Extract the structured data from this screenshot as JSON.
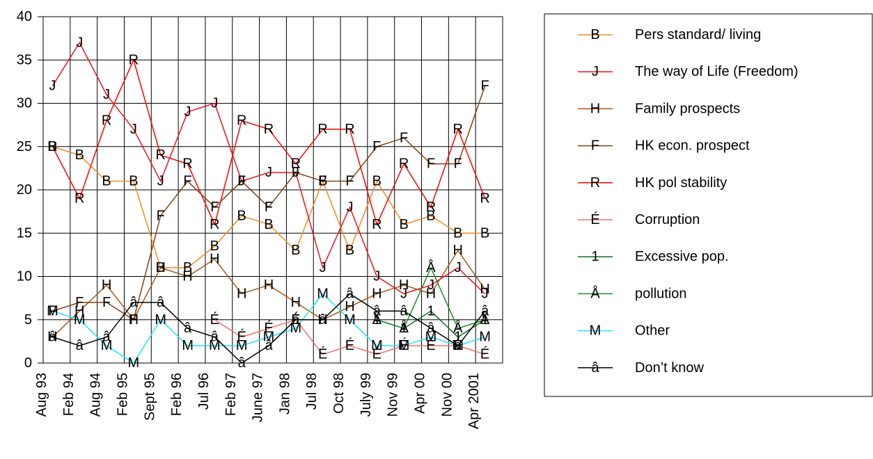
{
  "chart_data": {
    "type": "line",
    "categories": [
      "Aug 93",
      "Feb 94",
      "Aug 94",
      "Feb 95",
      "Sept 95",
      "Feb 96",
      "Jul 96",
      "Feb 97",
      "June 97",
      "Jan 98",
      "Jul 98",
      "Oct 98",
      "July 99",
      "Nov 99",
      "Apr 00",
      "Nov 00",
      "Apr 2001"
    ],
    "ylim": [
      0,
      40
    ],
    "yticks": [
      0,
      5,
      10,
      15,
      20,
      25,
      30,
      35,
      40
    ],
    "grid": true,
    "legend": "right",
    "series": [
      {
        "name": "Pers standard/ living",
        "marker": "B",
        "color": "#f28c1e",
        "values": [
          25,
          24,
          21,
          21,
          11,
          11,
          13.5,
          17,
          16,
          13,
          21,
          13,
          21,
          16,
          17,
          15,
          15
        ]
      },
      {
        "name": "The way of Life (Freedom)",
        "marker": "J",
        "color": "#e8131b",
        "values": [
          32,
          37,
          31,
          27,
          21,
          29,
          30,
          21,
          22,
          22,
          11,
          18,
          10,
          8,
          9,
          11,
          8
        ]
      },
      {
        "name": "Family prospects",
        "marker": "H",
        "color": "#a9581a",
        "values": [
          3,
          6,
          9,
          5,
          11,
          10,
          12,
          8,
          9,
          7,
          5,
          6.5,
          8,
          9,
          8,
          13,
          8.5
        ]
      },
      {
        "name": "HK econ. prospect",
        "marker": "F",
        "color": "#7f420e",
        "values": [
          6,
          7,
          7,
          5,
          17,
          21,
          18,
          21,
          18,
          22,
          21,
          21,
          25,
          26,
          23,
          23,
          32
        ]
      },
      {
        "name": "HK pol stability",
        "marker": "R",
        "color": "#ff0000",
        "values": [
          25,
          19,
          28,
          35,
          24,
          23,
          16,
          28,
          27,
          23,
          27,
          27,
          16,
          23,
          18,
          27,
          19
        ]
      },
      {
        "name": "Corruption",
        "marker": "É",
        "color": "#f07070",
        "values": [
          null,
          null,
          null,
          null,
          null,
          null,
          5,
          3,
          4,
          5,
          1,
          2,
          1,
          2,
          2,
          2,
          1
        ]
      },
      {
        "name": "Excessive pop.",
        "marker": "1",
        "color": "#0b6b1e",
        "values": [
          null,
          null,
          null,
          null,
          null,
          null,
          null,
          null,
          null,
          null,
          null,
          null,
          5,
          4,
          6,
          3,
          5
        ]
      },
      {
        "name": "pollution",
        "marker": "Å",
        "color": "#1a8c2a",
        "values": [
          null,
          null,
          null,
          null,
          null,
          null,
          null,
          null,
          null,
          null,
          null,
          null,
          5,
          4,
          11,
          4,
          5
        ]
      },
      {
        "name": "Other",
        "marker": "M",
        "color": "#22e5ee",
        "values": [
          6,
          5,
          2,
          0,
          5,
          2,
          2,
          2,
          3,
          4,
          8,
          5,
          2,
          2,
          3,
          2,
          3
        ]
      },
      {
        "name": "Don’t know",
        "marker": "â",
        "color": "#000000",
        "values": [
          3,
          2,
          3,
          7,
          7,
          4,
          3,
          0,
          2,
          5,
          5,
          8,
          6,
          6,
          4,
          2,
          6
        ]
      }
    ]
  }
}
